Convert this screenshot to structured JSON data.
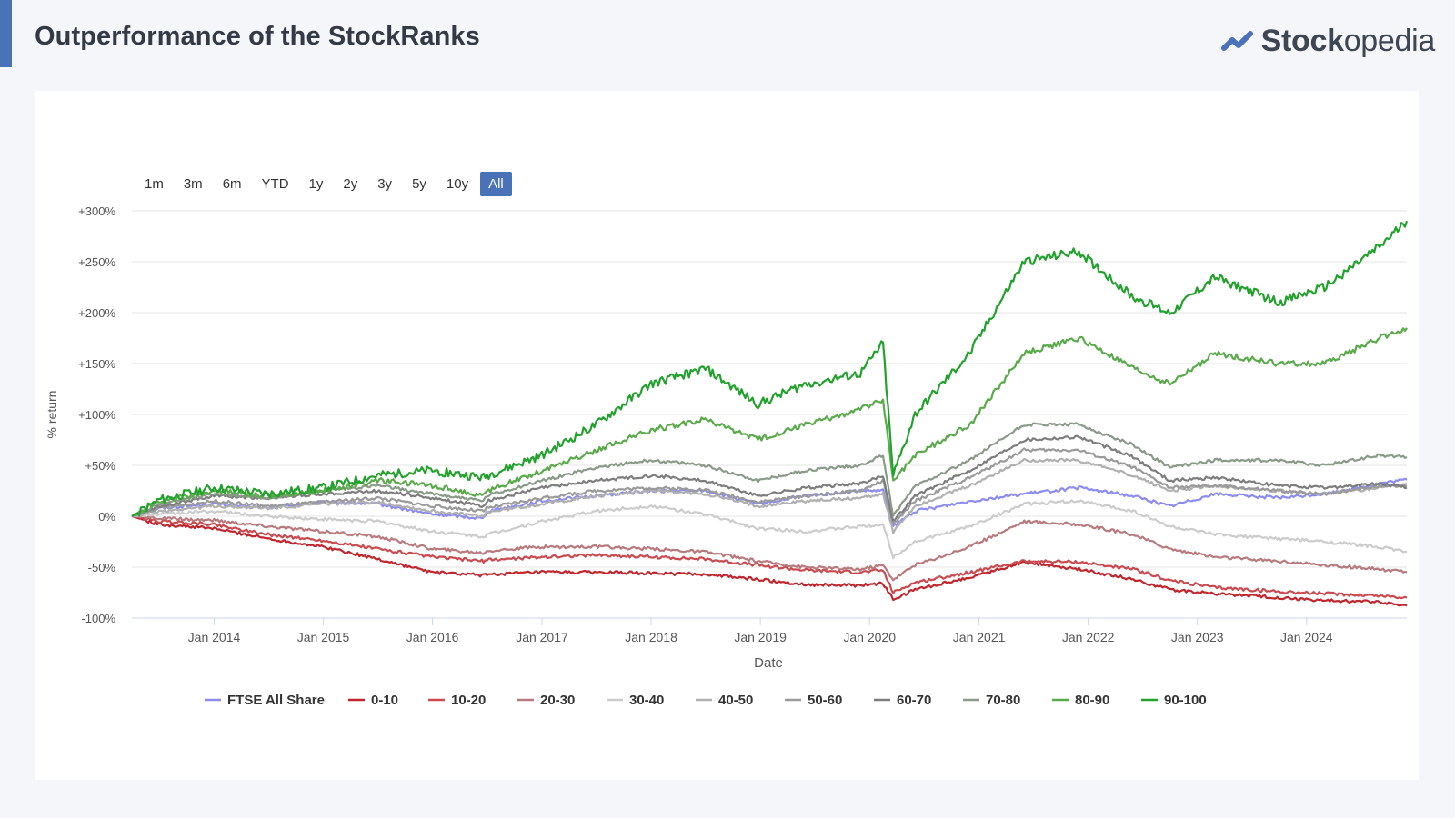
{
  "header": {
    "title": "Outperformance of the StockRanks",
    "logo_bold": "Stock",
    "logo_light": "opedia"
  },
  "range_selector": {
    "buttons": [
      "1m",
      "3m",
      "6m",
      "YTD",
      "1y",
      "2y",
      "3y",
      "5y",
      "10y",
      "All"
    ],
    "active": "All"
  },
  "colors": {
    "accent": "#4a72b8",
    "page_background": "#f4f6fa",
    "card_background": "#ffffff"
  },
  "chart_data": {
    "type": "line",
    "xlabel": "Date",
    "ylabel": "% return",
    "x_start": "2013-04",
    "x_end": "2024-12",
    "ylim": [
      -100,
      300
    ],
    "yticks": [
      -100,
      -50,
      0,
      50,
      100,
      150,
      200,
      250,
      300
    ],
    "ytick_labels": [
      "-100%",
      "-50%",
      "0%",
      "+50%",
      "+100%",
      "+150%",
      "+200%",
      "+250%",
      "+300%"
    ],
    "xticks": [
      "Jan 2014",
      "Jan 2015",
      "Jan 2016",
      "Jan 2017",
      "Jan 2018",
      "Jan 2019",
      "Jan 2020",
      "Jan 2021",
      "Jan 2022",
      "Jan 2023",
      "Jan 2024"
    ],
    "grid": true,
    "legend_position": "bottom",
    "x_points": [
      "2013-04-01",
      "2013-07-01",
      "2014-01-01",
      "2014-07-01",
      "2015-01-01",
      "2015-07-01",
      "2016-01-01",
      "2016-06-20",
      "2016-07-01",
      "2017-01-01",
      "2017-07-01",
      "2018-01-01",
      "2018-07-01",
      "2018-12-24",
      "2019-06-01",
      "2019-12-01",
      "2020-02-15",
      "2020-03-20",
      "2020-06-01",
      "2020-12-01",
      "2021-06-01",
      "2021-12-01",
      "2022-06-01",
      "2022-10-01",
      "2023-03-01",
      "2023-10-01",
      "2024-03-01",
      "2024-09-01",
      "2024-12-01"
    ],
    "series": [
      {
        "name": "FTSE All Share",
        "color": "#8c8cf0",
        "values": [
          0,
          8,
          12,
          8,
          14,
          12,
          2,
          -2,
          5,
          15,
          20,
          25,
          25,
          12,
          20,
          25,
          25,
          -10,
          5,
          15,
          22,
          28,
          20,
          10,
          22,
          18,
          22,
          32,
          36
        ]
      },
      {
        "name": "0-10",
        "color": "#c0262e",
        "values": [
          0,
          -8,
          -12,
          -22,
          -30,
          -42,
          -55,
          -58,
          -57,
          -55,
          -55,
          -56,
          -57,
          -62,
          -67,
          -68,
          -66,
          -82,
          -72,
          -60,
          -45,
          -52,
          -62,
          -72,
          -76,
          -80,
          -83,
          -84,
          -88
        ]
      },
      {
        "name": "10-20",
        "color": "#c94a4f",
        "values": [
          0,
          -5,
          -8,
          -18,
          -24,
          -32,
          -40,
          -44,
          -43,
          -40,
          -38,
          -40,
          -42,
          -48,
          -53,
          -55,
          -53,
          -75,
          -65,
          -55,
          -44,
          -45,
          -52,
          -63,
          -70,
          -74,
          -76,
          -78,
          -80
        ]
      },
      {
        "name": "20-30",
        "color": "#b87a7d",
        "values": [
          0,
          -2,
          -4,
          -10,
          -15,
          -20,
          -32,
          -36,
          -34,
          -30,
          -30,
          -32,
          -35,
          -44,
          -50,
          -52,
          -48,
          -62,
          -48,
          -30,
          -5,
          -8,
          -18,
          -32,
          -40,
          -44,
          -48,
          -52,
          -55
        ]
      },
      {
        "name": "30-40",
        "color": "#cccccc",
        "values": [
          0,
          2,
          5,
          0,
          -3,
          -5,
          -15,
          -20,
          -18,
          -5,
          5,
          10,
          2,
          -12,
          -15,
          -10,
          -8,
          -40,
          -25,
          -10,
          12,
          15,
          5,
          -10,
          -18,
          -22,
          -25,
          -30,
          -35
        ]
      },
      {
        "name": "40-50",
        "color": "#b0b0b0",
        "values": [
          0,
          5,
          10,
          8,
          12,
          14,
          5,
          0,
          4,
          12,
          20,
          25,
          22,
          10,
          15,
          18,
          22,
          -15,
          10,
          30,
          55,
          55,
          40,
          25,
          30,
          25,
          22,
          28,
          32
        ]
      },
      {
        "name": "50-60",
        "color": "#9a9a9a",
        "values": [
          0,
          8,
          15,
          10,
          14,
          18,
          10,
          5,
          8,
          18,
          25,
          28,
          26,
          14,
          20,
          25,
          35,
          -8,
          15,
          38,
          65,
          65,
          48,
          28,
          30,
          25,
          22,
          30,
          30
        ]
      },
      {
        "name": "60-70",
        "color": "#7d7d7d",
        "values": [
          0,
          10,
          20,
          18,
          22,
          25,
          18,
          10,
          15,
          28,
          35,
          40,
          35,
          20,
          28,
          32,
          40,
          -5,
          20,
          45,
          75,
          78,
          58,
          35,
          38,
          30,
          28,
          32,
          28
        ]
      },
      {
        "name": "70-80",
        "color": "#8a9a88",
        "values": [
          0,
          12,
          22,
          18,
          25,
          30,
          22,
          15,
          20,
          35,
          48,
          55,
          50,
          35,
          45,
          50,
          60,
          0,
          30,
          55,
          90,
          90,
          70,
          48,
          55,
          55,
          50,
          60,
          58
        ]
      },
      {
        "name": "80-90",
        "color": "#5aaa4c",
        "values": [
          0,
          14,
          25,
          20,
          25,
          35,
          30,
          20,
          25,
          45,
          65,
          85,
          95,
          75,
          90,
          105,
          115,
          35,
          60,
          90,
          160,
          175,
          145,
          130,
          160,
          150,
          150,
          175,
          185
        ]
      },
      {
        "name": "90-100",
        "color": "#22a22d",
        "values": [
          0,
          16,
          28,
          22,
          28,
          40,
          45,
          38,
          40,
          60,
          90,
          130,
          145,
          110,
          130,
          140,
          170,
          40,
          100,
          160,
          250,
          260,
          215,
          200,
          235,
          210,
          225,
          265,
          290
        ]
      }
    ]
  }
}
